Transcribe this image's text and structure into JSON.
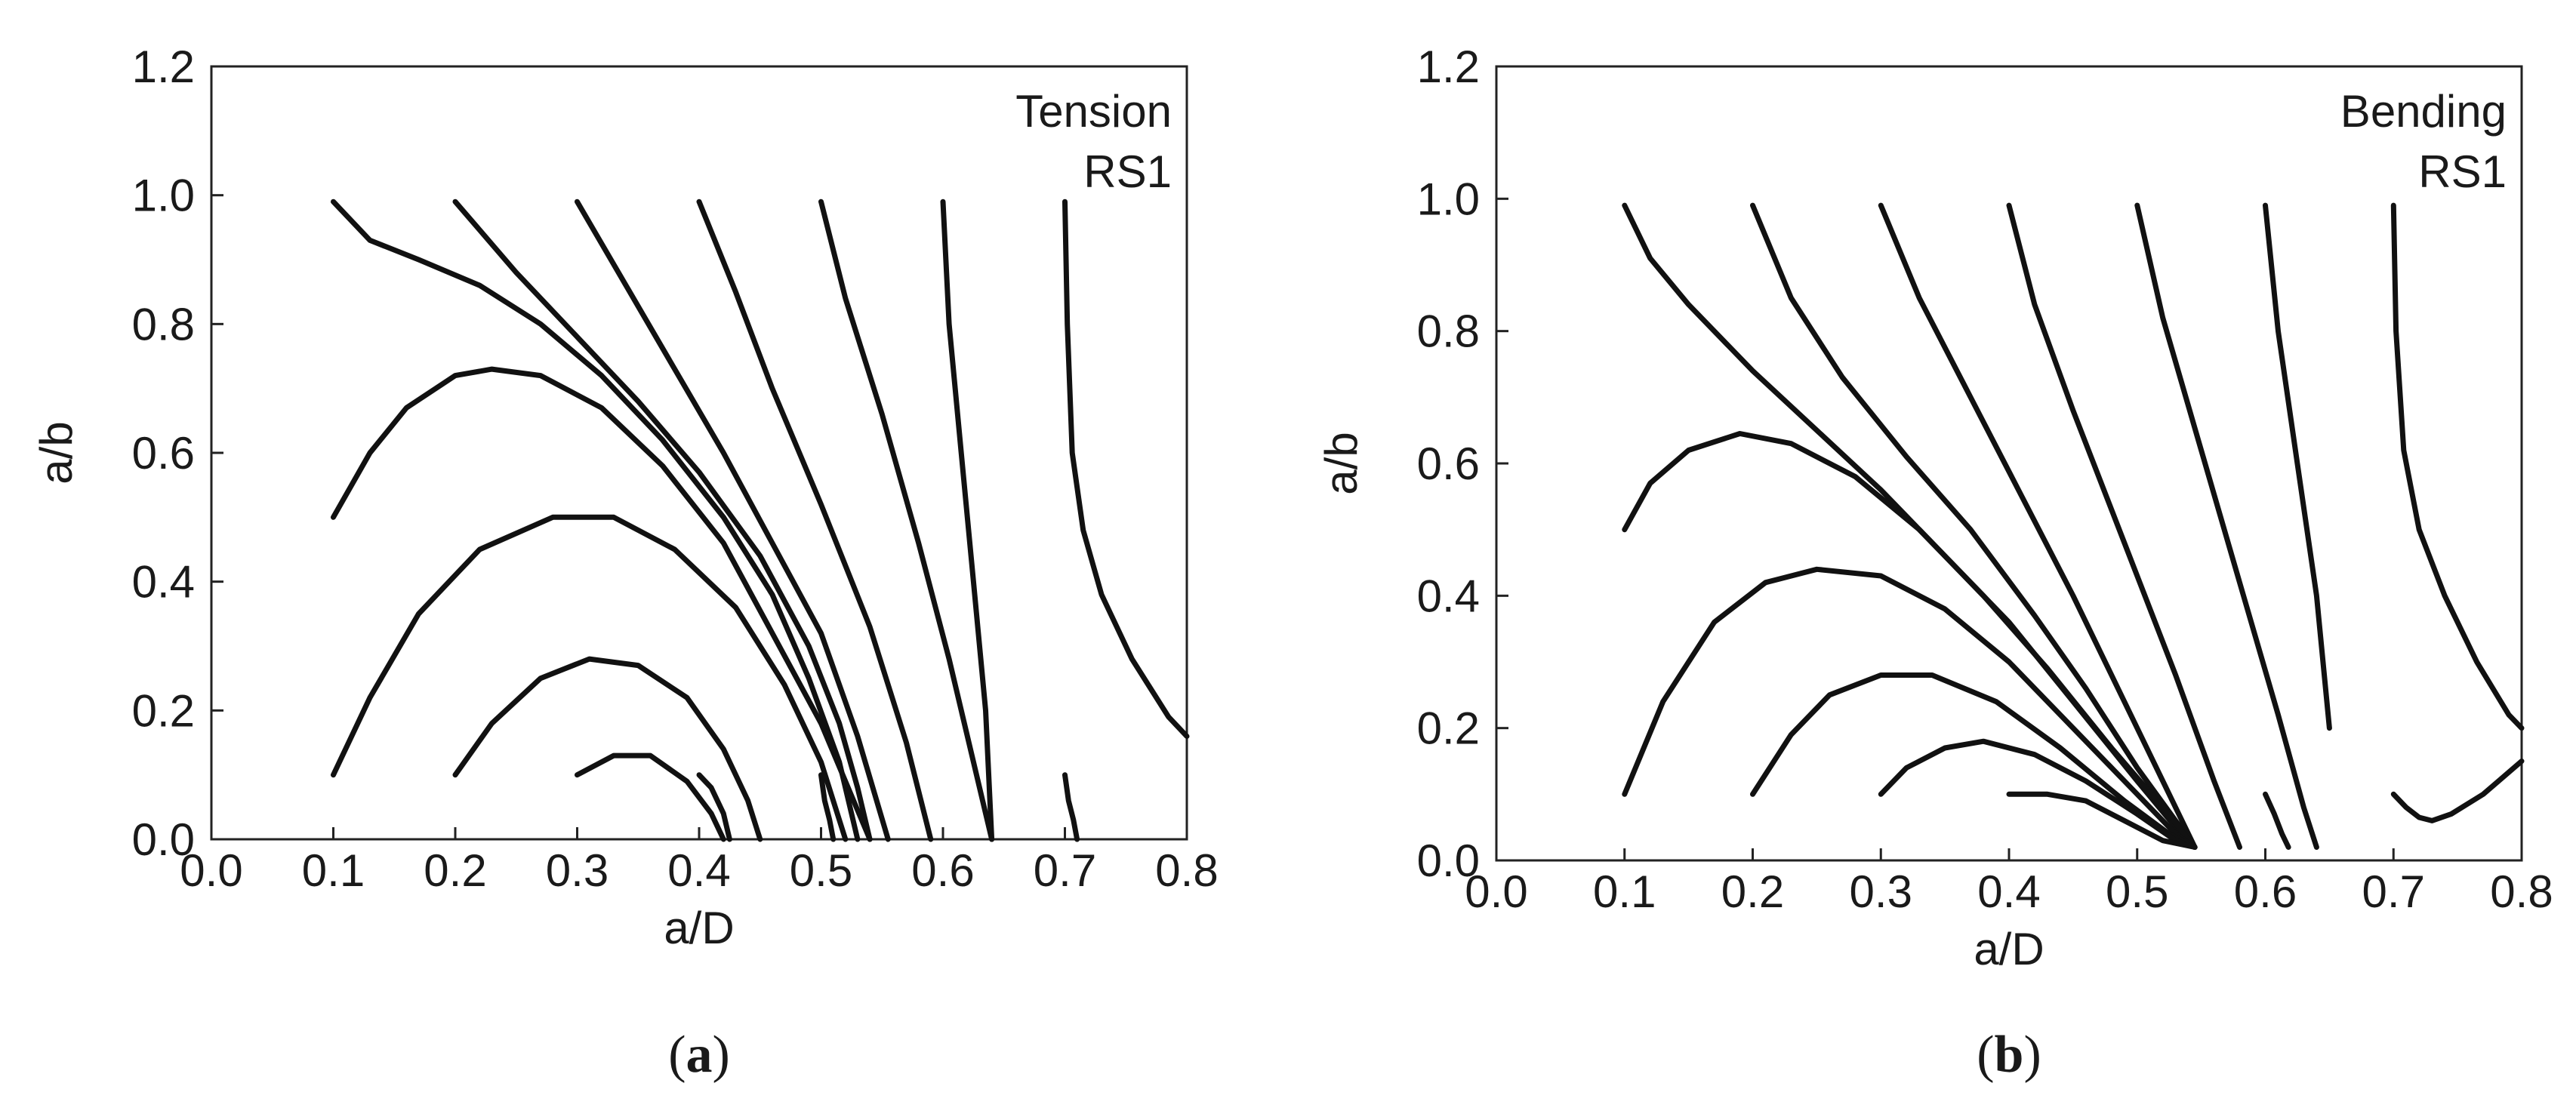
{
  "chart_data": [
    {
      "type": "line",
      "panel_label": "a",
      "xlabel": "a/D",
      "ylabel": "a/b",
      "xlim": [
        0.0,
        0.8
      ],
      "ylim": [
        0.0,
        1.2
      ],
      "xticks": [
        "0.0",
        "0.1",
        "0.2",
        "0.3",
        "0.4",
        "0.5",
        "0.6",
        "0.7",
        "0.8"
      ],
      "yticks": [
        "0.0",
        "0.2",
        "0.4",
        "0.6",
        "0.8",
        "1.0",
        "1.2"
      ],
      "grid": false,
      "annotation": [
        "Tension",
        "RS1"
      ],
      "series": [
        {
          "x": [
            0.1,
            0.13,
            0.17,
            0.22,
            0.27,
            0.32,
            0.37,
            0.42,
            0.46,
            0.49,
            0.515,
            0.53
          ],
          "y": [
            0.99,
            0.93,
            0.9,
            0.86,
            0.8,
            0.72,
            0.62,
            0.5,
            0.38,
            0.25,
            0.12,
            0.0
          ]
        },
        {
          "x": [
            0.2,
            0.25,
            0.3,
            0.35,
            0.4,
            0.45,
            0.49,
            0.515,
            0.53,
            0.54
          ],
          "y": [
            0.99,
            0.88,
            0.78,
            0.68,
            0.57,
            0.44,
            0.3,
            0.18,
            0.08,
            0.0
          ]
        },
        {
          "x": [
            0.3,
            0.34,
            0.38,
            0.42,
            0.46,
            0.5,
            0.53,
            0.555
          ],
          "y": [
            0.99,
            0.86,
            0.73,
            0.6,
            0.46,
            0.32,
            0.16,
            0.0
          ]
        },
        {
          "x": [
            0.4,
            0.43,
            0.46,
            0.5,
            0.54,
            0.57,
            0.59
          ],
          "y": [
            0.99,
            0.85,
            0.7,
            0.52,
            0.33,
            0.15,
            0.0
          ]
        },
        {
          "x": [
            0.5,
            0.52,
            0.55,
            0.58,
            0.605,
            0.625,
            0.64
          ],
          "y": [
            0.99,
            0.84,
            0.66,
            0.46,
            0.28,
            0.12,
            0.0
          ]
        },
        {
          "x": [
            0.6,
            0.605,
            0.615,
            0.625,
            0.635,
            0.64
          ],
          "y": [
            0.99,
            0.8,
            0.6,
            0.4,
            0.2,
            0.0
          ]
        },
        {
          "x": [
            0.7,
            0.702,
            0.706,
            0.715,
            0.73,
            0.755,
            0.785,
            0.8
          ],
          "y": [
            0.99,
            0.8,
            0.6,
            0.48,
            0.38,
            0.28,
            0.19,
            0.16
          ]
        },
        {
          "x": [
            0.1,
            0.13,
            0.16,
            0.2,
            0.23,
            0.27,
            0.32,
            0.37,
            0.42,
            0.46,
            0.5,
            0.52,
            0.54
          ],
          "y": [
            0.5,
            0.6,
            0.67,
            0.72,
            0.73,
            0.72,
            0.67,
            0.58,
            0.46,
            0.32,
            0.18,
            0.09,
            0.0
          ]
        },
        {
          "x": [
            0.1,
            0.13,
            0.17,
            0.22,
            0.28,
            0.33,
            0.38,
            0.43,
            0.47,
            0.5,
            0.52
          ],
          "y": [
            0.1,
            0.22,
            0.35,
            0.45,
            0.5,
            0.5,
            0.45,
            0.36,
            0.24,
            0.12,
            0.0
          ]
        },
        {
          "x": [
            0.2,
            0.23,
            0.27,
            0.31,
            0.35,
            0.39,
            0.42,
            0.44,
            0.45
          ],
          "y": [
            0.1,
            0.18,
            0.25,
            0.28,
            0.27,
            0.22,
            0.14,
            0.06,
            0.0
          ]
        },
        {
          "x": [
            0.3,
            0.33,
            0.36,
            0.39,
            0.41,
            0.42
          ],
          "y": [
            0.1,
            0.13,
            0.13,
            0.09,
            0.04,
            0.0
          ]
        },
        {
          "x": [
            0.4,
            0.41,
            0.42,
            0.425
          ],
          "y": [
            0.1,
            0.08,
            0.04,
            0.0
          ]
        },
        {
          "x": [
            0.5,
            0.503,
            0.507,
            0.51
          ],
          "y": [
            0.1,
            0.06,
            0.03,
            0.0
          ]
        },
        {
          "x": [
            0.7,
            0.703,
            0.707,
            0.71
          ],
          "y": [
            0.1,
            0.06,
            0.03,
            0.0
          ]
        }
      ]
    },
    {
      "type": "line",
      "panel_label": "b",
      "xlabel": "a/D",
      "ylabel": "a/b",
      "xlim": [
        0.0,
        0.8
      ],
      "ylim": [
        0.0,
        1.2
      ],
      "xticks": [
        "0.0",
        "0.1",
        "0.2",
        "0.3",
        "0.4",
        "0.5",
        "0.6",
        "0.7",
        "0.8"
      ],
      "yticks": [
        "0.0",
        "0.2",
        "0.4",
        "0.6",
        "0.8",
        "1.0",
        "1.2"
      ],
      "grid": false,
      "annotation": [
        "Bending",
        "RS1"
      ],
      "series": [
        {
          "x": [
            0.1,
            0.12,
            0.15,
            0.2,
            0.25,
            0.3,
            0.35,
            0.4,
            0.45,
            0.5,
            0.53,
            0.545
          ],
          "y": [
            0.99,
            0.91,
            0.84,
            0.74,
            0.65,
            0.56,
            0.46,
            0.36,
            0.24,
            0.12,
            0.05,
            0.02
          ]
        },
        {
          "x": [
            0.2,
            0.23,
            0.27,
            0.32,
            0.37,
            0.42,
            0.46,
            0.5,
            0.53,
            0.545
          ],
          "y": [
            0.99,
            0.85,
            0.73,
            0.61,
            0.5,
            0.37,
            0.26,
            0.14,
            0.06,
            0.02
          ]
        },
        {
          "x": [
            0.3,
            0.33,
            0.37,
            0.41,
            0.45,
            0.49,
            0.52,
            0.545
          ],
          "y": [
            0.99,
            0.85,
            0.7,
            0.55,
            0.4,
            0.24,
            0.12,
            0.02
          ]
        },
        {
          "x": [
            0.4,
            0.42,
            0.45,
            0.49,
            0.53,
            0.56,
            0.58
          ],
          "y": [
            0.99,
            0.84,
            0.68,
            0.48,
            0.28,
            0.12,
            0.02
          ]
        },
        {
          "x": [
            0.5,
            0.52,
            0.55,
            0.58,
            0.61,
            0.63,
            0.64
          ],
          "y": [
            0.99,
            0.82,
            0.62,
            0.42,
            0.22,
            0.08,
            0.02
          ]
        },
        {
          "x": [
            0.6,
            0.61,
            0.625,
            0.64,
            0.65
          ],
          "y": [
            0.99,
            0.8,
            0.6,
            0.4,
            0.2
          ]
        },
        {
          "x": [
            0.7,
            0.702,
            0.708,
            0.72,
            0.74,
            0.765,
            0.79,
            0.8
          ],
          "y": [
            0.99,
            0.8,
            0.62,
            0.5,
            0.4,
            0.3,
            0.22,
            0.2
          ]
        },
        {
          "x": [
            0.1,
            0.12,
            0.15,
            0.19,
            0.23,
            0.28,
            0.33,
            0.38,
            0.43,
            0.48,
            0.52,
            0.545
          ],
          "y": [
            0.5,
            0.57,
            0.62,
            0.645,
            0.63,
            0.58,
            0.5,
            0.4,
            0.29,
            0.17,
            0.08,
            0.02
          ]
        },
        {
          "x": [
            0.1,
            0.13,
            0.17,
            0.21,
            0.25,
            0.3,
            0.35,
            0.4,
            0.45,
            0.5,
            0.53,
            0.545
          ],
          "y": [
            0.1,
            0.24,
            0.36,
            0.42,
            0.44,
            0.43,
            0.38,
            0.3,
            0.2,
            0.1,
            0.04,
            0.02
          ]
        },
        {
          "x": [
            0.2,
            0.23,
            0.26,
            0.3,
            0.34,
            0.39,
            0.44,
            0.49,
            0.525,
            0.545
          ],
          "y": [
            0.1,
            0.19,
            0.25,
            0.28,
            0.28,
            0.24,
            0.17,
            0.09,
            0.04,
            0.02
          ]
        },
        {
          "x": [
            0.3,
            0.32,
            0.35,
            0.38,
            0.42,
            0.46,
            0.5,
            0.53,
            0.545
          ],
          "y": [
            0.1,
            0.14,
            0.17,
            0.18,
            0.16,
            0.12,
            0.07,
            0.03,
            0.02
          ]
        },
        {
          "x": [
            0.4,
            0.43,
            0.46,
            0.49,
            0.52,
            0.545
          ],
          "y": [
            0.1,
            0.1,
            0.09,
            0.06,
            0.03,
            0.02
          ]
        },
        {
          "x": [
            0.6,
            0.607,
            0.613,
            0.618
          ],
          "y": [
            0.1,
            0.07,
            0.04,
            0.02
          ]
        },
        {
          "x": [
            0.7,
            0.71,
            0.72,
            0.73,
            0.745,
            0.77,
            0.8
          ],
          "y": [
            0.1,
            0.08,
            0.065,
            0.06,
            0.07,
            0.1,
            0.15
          ]
        }
      ]
    }
  ]
}
